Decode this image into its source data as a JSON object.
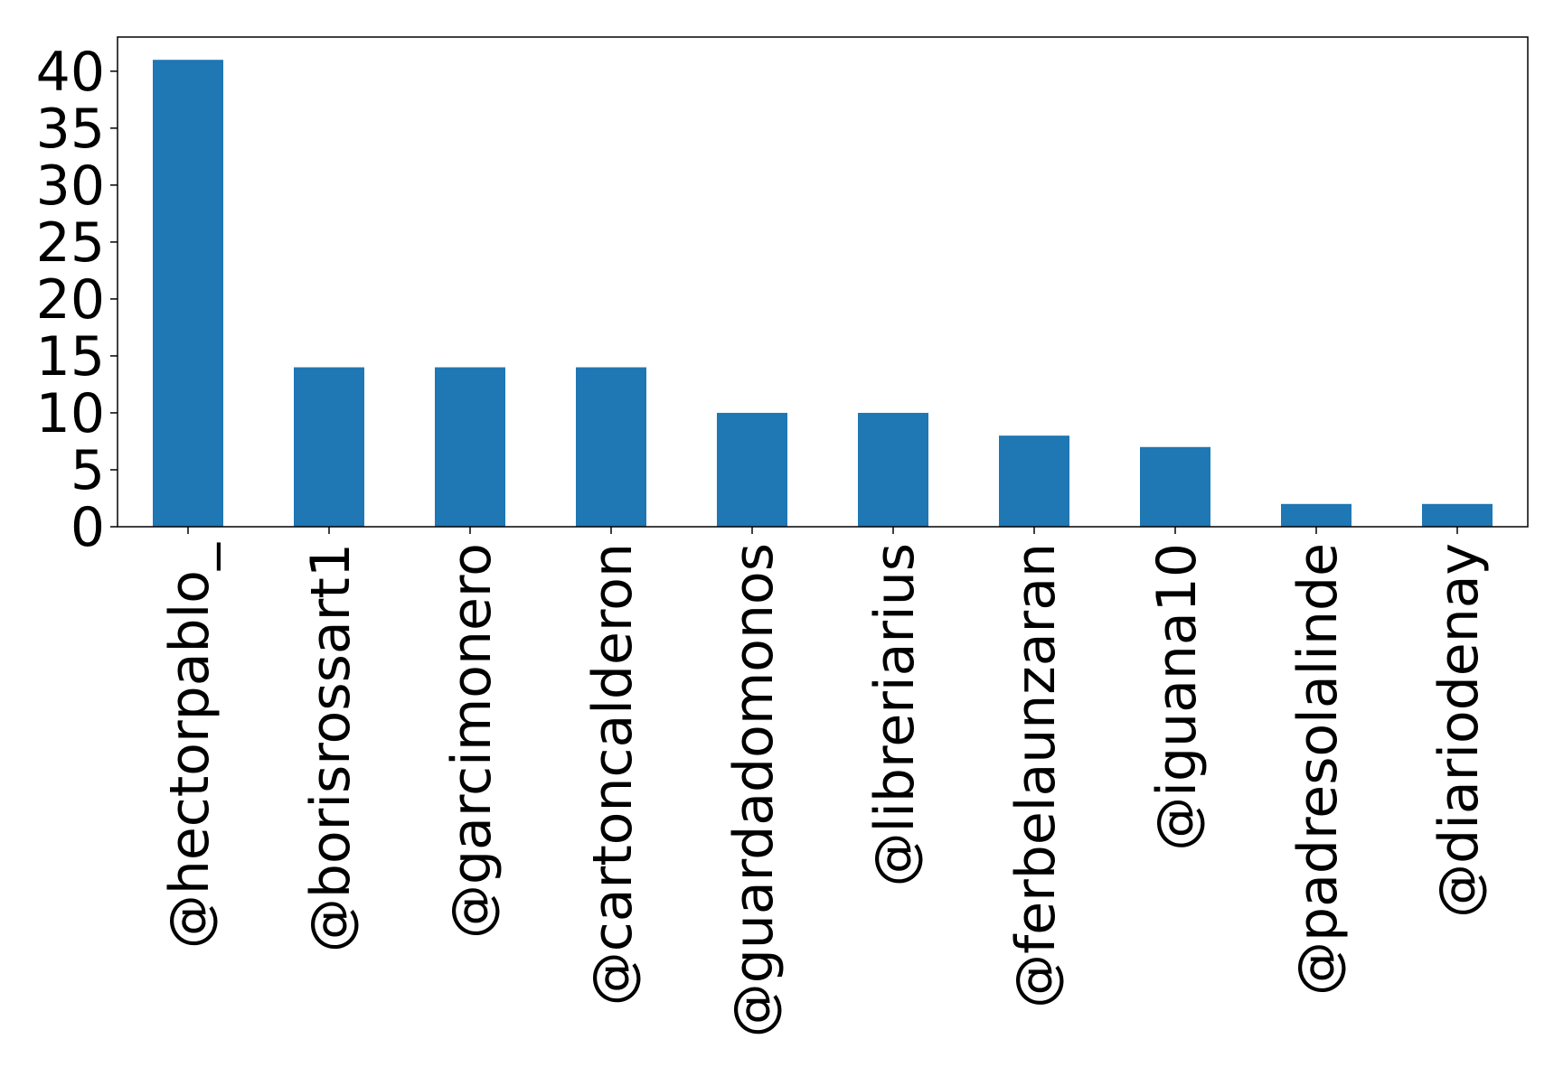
{
  "chart_data": {
    "type": "bar",
    "title": "",
    "xlabel": "",
    "ylabel": "",
    "categories": [
      "@hectorpablo_",
      "@borisrossart1",
      "@garcimonero",
      "@cartoncalderon",
      "@guardadomonos",
      "@libreriarius",
      "@ferbelaunzaran",
      "@iguana10",
      "@padresolalinde",
      "@diariodenay"
    ],
    "values": [
      41,
      14,
      14,
      14,
      10,
      10,
      8,
      7,
      2,
      2
    ],
    "ylim": [
      0,
      43
    ],
    "yticks": [
      0,
      5,
      10,
      15,
      20,
      25,
      30,
      35,
      40
    ],
    "grid": false,
    "legend": "none",
    "bar_color": "#1f77b4"
  }
}
